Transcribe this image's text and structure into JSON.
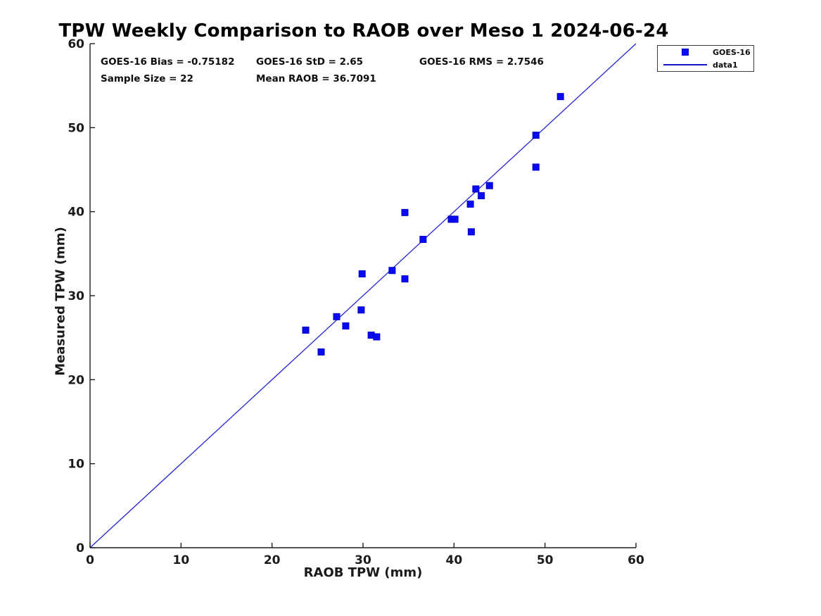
{
  "figure": {
    "title": "TPW Weekly Comparison to RAOB over Meso 1 2024-06-24",
    "stats": {
      "bias": "GOES-16 Bias = -0.75182",
      "std": "GOES-16 StD = 2.65",
      "rms": "GOES-16 RMS = 2.7546",
      "sample_size": "Sample Size = 22",
      "mean_raob": "Mean RAOB = 36.7091"
    },
    "legend": {
      "entries": [
        {
          "label": "GOES-16",
          "marker": "filled-square-icon"
        },
        {
          "label": "data1",
          "marker": "line-icon"
        }
      ]
    },
    "colors": {
      "marker_fill": "#0909f2",
      "marker_edge": "#0000c8",
      "line": "#2424d0",
      "axis": "#1f1f1f",
      "background": "#ffffff"
    }
  },
  "chart_data": {
    "type": "scatter",
    "title": "TPW Weekly Comparison to RAOB over Meso 1 2024-06-24",
    "xlabel": "RAOB TPW (mm)",
    "ylabel": "Measured TPW (mm)",
    "xlim": [
      0,
      60
    ],
    "ylim": [
      0,
      60
    ],
    "xticks": [
      0,
      10,
      20,
      30,
      40,
      50,
      60
    ],
    "yticks": [
      0,
      10,
      20,
      30,
      40,
      50,
      60
    ],
    "grid": false,
    "legend_position": "top-right-outside",
    "annotations": [
      "GOES-16 Bias = -0.75182",
      "GOES-16 StD = 2.65",
      "GOES-16 RMS = 2.7546",
      "Sample Size = 22",
      "Mean RAOB = 36.7091"
    ],
    "series": [
      {
        "name": "data1",
        "type": "line",
        "points": [
          [
            0,
            0
          ],
          [
            60,
            60
          ]
        ]
      },
      {
        "name": "GOES-16",
        "type": "scatter",
        "marker": "filled-square",
        "points": [
          [
            23.7,
            25.9
          ],
          [
            25.4,
            23.3
          ],
          [
            27.1,
            27.5
          ],
          [
            28.1,
            26.4
          ],
          [
            29.8,
            28.3
          ],
          [
            29.9,
            32.6
          ],
          [
            30.9,
            25.3
          ],
          [
            31.5,
            25.1
          ],
          [
            33.2,
            33.0
          ],
          [
            34.6,
            32.0
          ],
          [
            34.6,
            39.9
          ],
          [
            36.6,
            36.7
          ],
          [
            39.7,
            39.1
          ],
          [
            40.1,
            39.1
          ],
          [
            41.8,
            40.9
          ],
          [
            41.9,
            37.6
          ],
          [
            42.4,
            42.7
          ],
          [
            43.0,
            41.9
          ],
          [
            43.9,
            43.1
          ],
          [
            49.0,
            45.3
          ],
          [
            49.0,
            49.1
          ],
          [
            51.7,
            53.7
          ]
        ]
      }
    ]
  }
}
